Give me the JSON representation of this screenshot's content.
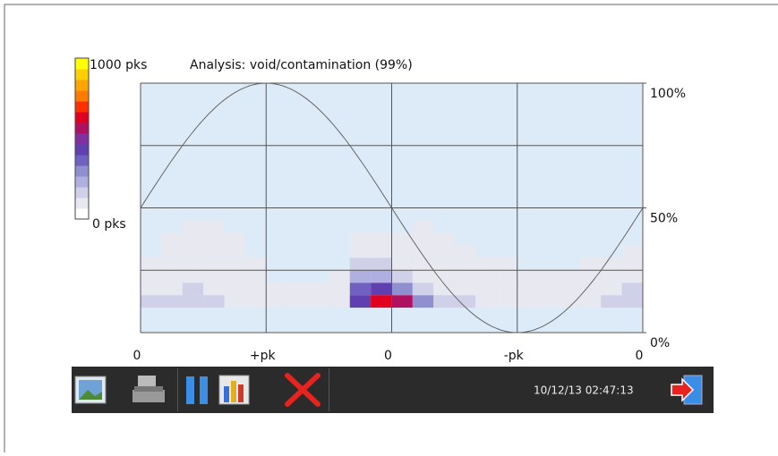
{
  "chart_data": {
    "type": "heatmap",
    "title": "Analysis: void/contamination (99%)",
    "xlim": [
      0,
      360
    ],
    "xticks": [
      {
        "value": 0,
        "label": "0"
      },
      {
        "value": 90,
        "label": "+pk"
      },
      {
        "value": 180,
        "label": "0"
      },
      {
        "value": 270,
        "label": "-pk"
      },
      {
        "value": 360,
        "label": "0"
      }
    ],
    "ylim": [
      0,
      100
    ],
    "yticks": [
      {
        "value": 0,
        "label": "0%"
      },
      {
        "value": 50,
        "label": "50%"
      },
      {
        "value": 100,
        "label": "100%"
      }
    ],
    "ygrid": [
      0,
      25,
      50,
      75,
      100
    ],
    "zlim": [
      {
        "value": 0,
        "label": "0 pks"
      },
      {
        "value": 1000,
        "label": "1000 pks"
      }
    ],
    "colorscale": [
      "#ffffff",
      "#e8e8f0",
      "#d0d0e8",
      "#b0b0e0",
      "#9090d0",
      "#7060c0",
      "#6040b0",
      "#8030a0",
      "#b01060",
      "#e00020",
      "#ff3000",
      "#ff7a00",
      "#ffa500",
      "#ffd000",
      "#ffff00"
    ],
    "x_bins": [
      0,
      15,
      30,
      45,
      60,
      75,
      90,
      105,
      120,
      135,
      150,
      165,
      180,
      195,
      210,
      225,
      240,
      255,
      270,
      285,
      300,
      315,
      330,
      345,
      360
    ],
    "y_bins": [
      10,
      15,
      20,
      25,
      30,
      35,
      40,
      45
    ],
    "z": [
      [
        120,
        150,
        140,
        120,
        100,
        60,
        40,
        30,
        20,
        30,
        400,
        650,
        550,
        250,
        150,
        120,
        90,
        70,
        60,
        50,
        60,
        80,
        120,
        160
      ],
      [
        80,
        100,
        110,
        90,
        70,
        30,
        10,
        5,
        5,
        10,
        350,
        400,
        300,
        150,
        100,
        80,
        60,
        40,
        30,
        20,
        30,
        50,
        90,
        120
      ],
      [
        30,
        50,
        60,
        50,
        30,
        10,
        0,
        0,
        0,
        5,
        200,
        220,
        150,
        90,
        60,
        50,
        30,
        20,
        10,
        5,
        10,
        20,
        40,
        60
      ],
      [
        10,
        30,
        40,
        35,
        20,
        5,
        0,
        0,
        0,
        0,
        120,
        130,
        90,
        50,
        30,
        20,
        10,
        5,
        0,
        0,
        0,
        5,
        10,
        20
      ],
      [
        0,
        15,
        25,
        20,
        10,
        0,
        0,
        0,
        0,
        0,
        40,
        50,
        30,
        15,
        10,
        5,
        0,
        0,
        0,
        0,
        0,
        0,
        0,
        5
      ],
      [
        0,
        5,
        10,
        8,
        3,
        0,
        0,
        0,
        0,
        0,
        5,
        10,
        5,
        3,
        2,
        0,
        0,
        0,
        0,
        0,
        0,
        0,
        0,
        0
      ],
      [
        0,
        0,
        3,
        2,
        0,
        0,
        0,
        0,
        0,
        0,
        0,
        0,
        0,
        2,
        0,
        0,
        0,
        0,
        0,
        0,
        0,
        0,
        0,
        0
      ]
    ]
  },
  "toolbar": {
    "timestamp": "10/12/13 02:47:13"
  }
}
